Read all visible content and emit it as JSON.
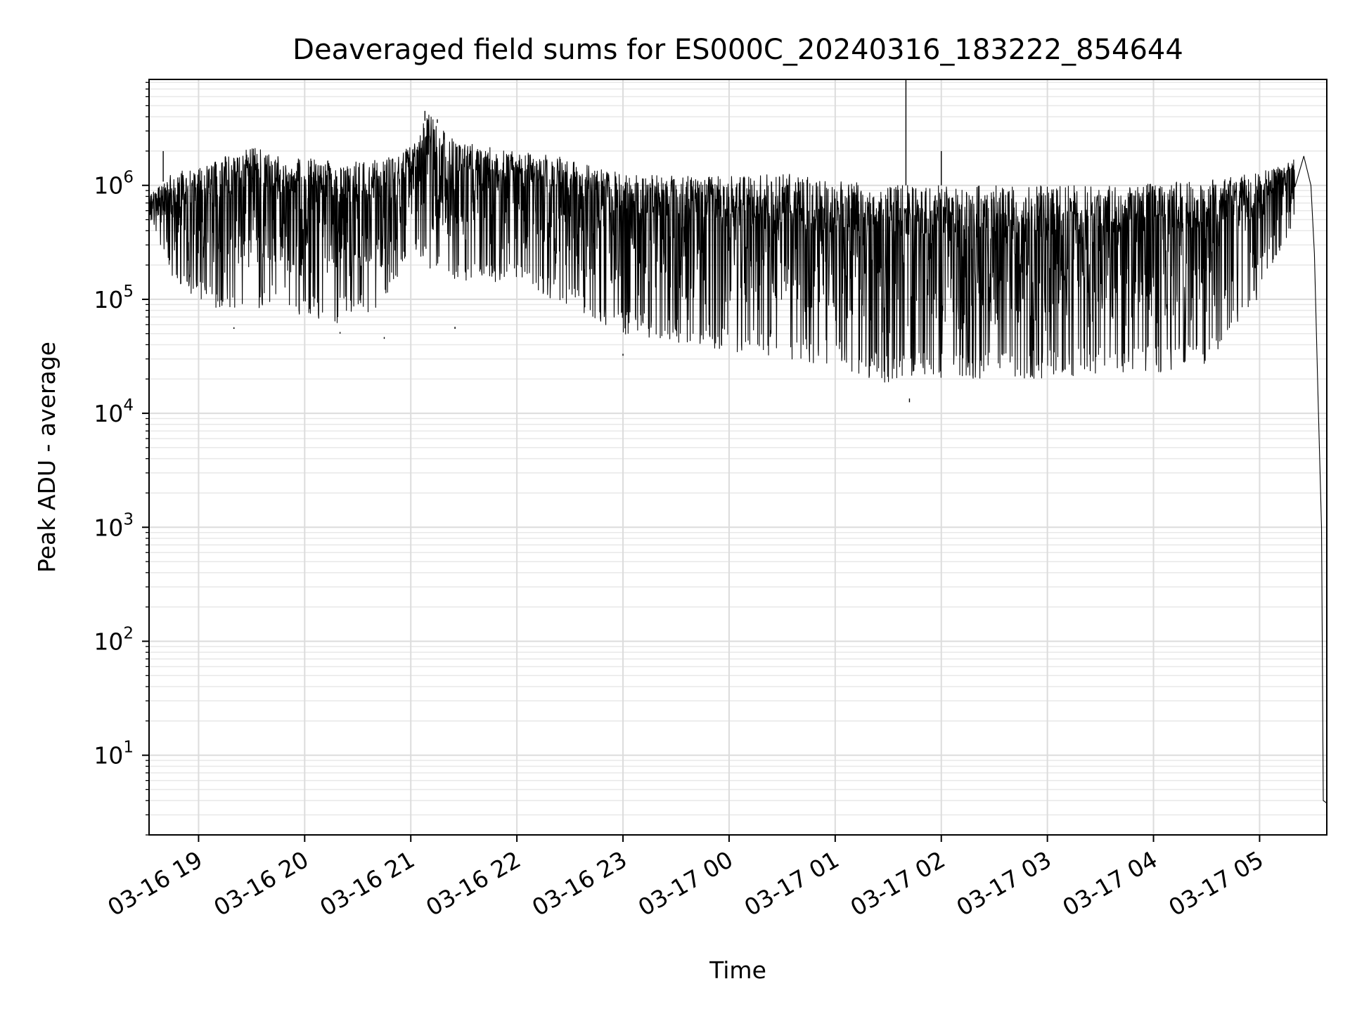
{
  "chart_data": {
    "type": "line",
    "title": "Deaveraged field sums for ES000C_20240316_183222_854644",
    "xlabel": "Time",
    "ylabel": "Peak ADU - average",
    "yscale": "log",
    "ylim": [
      2,
      8500000
    ],
    "xlim": [
      "2024-03-16 18:32",
      "2024-03-17 05:38"
    ],
    "grid": true,
    "x_ticks": [
      {
        "value": "2024-03-16 19:00",
        "label": "03-16 19"
      },
      {
        "value": "2024-03-16 20:00",
        "label": "03-16 20"
      },
      {
        "value": "2024-03-16 21:00",
        "label": "03-16 21"
      },
      {
        "value": "2024-03-16 22:00",
        "label": "03-16 22"
      },
      {
        "value": "2024-03-16 23:00",
        "label": "03-16 23"
      },
      {
        "value": "2024-03-17 00:00",
        "label": "03-17 00"
      },
      {
        "value": "2024-03-17 01:00",
        "label": "03-17 01"
      },
      {
        "value": "2024-03-17 02:00",
        "label": "03-17 02"
      },
      {
        "value": "2024-03-17 03:00",
        "label": "03-17 03"
      },
      {
        "value": "2024-03-17 04:00",
        "label": "03-17 04"
      },
      {
        "value": "2024-03-17 05:00",
        "label": "03-17 05"
      }
    ],
    "y_ticks": [
      {
        "value": 10,
        "base": "10",
        "exp": "1"
      },
      {
        "value": 100,
        "base": "10",
        "exp": "2"
      },
      {
        "value": 1000,
        "base": "10",
        "exp": "3"
      },
      {
        "value": 10000,
        "base": "10",
        "exp": "4"
      },
      {
        "value": 100000,
        "base": "10",
        "exp": "5"
      },
      {
        "value": 1000000,
        "base": "10",
        "exp": "6"
      }
    ],
    "series": [
      {
        "color": "#000000",
        "envelope": [
          {
            "x": "2024-03-16 18:32",
            "upper": 800000,
            "lower": 550000
          },
          {
            "x": "2024-03-16 18:45",
            "upper": 1300000,
            "lower": 150000
          },
          {
            "x": "2024-03-16 19:00",
            "upper": 1400000,
            "lower": 100000
          },
          {
            "x": "2024-03-16 19:15",
            "upper": 1800000,
            "lower": 70000
          },
          {
            "x": "2024-03-16 19:30",
            "upper": 2200000,
            "lower": 80000
          },
          {
            "x": "2024-03-16 19:45",
            "upper": 1800000,
            "lower": 90000
          },
          {
            "x": "2024-03-16 20:00",
            "upper": 1700000,
            "lower": 70000
          },
          {
            "x": "2024-03-16 20:15",
            "upper": 1800000,
            "lower": 60000
          },
          {
            "x": "2024-03-16 20:30",
            "upper": 1600000,
            "lower": 70000
          },
          {
            "x": "2024-03-16 20:45",
            "upper": 1700000,
            "lower": 80000
          },
          {
            "x": "2024-03-16 21:00",
            "upper": 2200000,
            "lower": 300000
          },
          {
            "x": "2024-03-16 21:10",
            "upper": 4200000,
            "lower": 180000
          },
          {
            "x": "2024-03-16 21:25",
            "upper": 2500000,
            "lower": 150000
          },
          {
            "x": "2024-03-16 21:45",
            "upper": 2200000,
            "lower": 130000
          },
          {
            "x": "2024-03-16 22:00",
            "upper": 2000000,
            "lower": 150000
          },
          {
            "x": "2024-03-16 22:20",
            "upper": 1900000,
            "lower": 100000
          },
          {
            "x": "2024-03-16 22:40",
            "upper": 1500000,
            "lower": 70000
          },
          {
            "x": "2024-03-16 23:00",
            "upper": 1300000,
            "lower": 50000
          },
          {
            "x": "2024-03-16 23:30",
            "upper": 1200000,
            "lower": 42000
          },
          {
            "x": "2024-03-17 00:00",
            "upper": 1200000,
            "lower": 35000
          },
          {
            "x": "2024-03-17 00:30",
            "upper": 1300000,
            "lower": 30000
          },
          {
            "x": "2024-03-17 01:00",
            "upper": 1100000,
            "lower": 25000
          },
          {
            "x": "2024-03-17 01:30",
            "upper": 1000000,
            "lower": 18000
          },
          {
            "x": "2024-03-17 02:00",
            "upper": 1000000,
            "lower": 20000
          },
          {
            "x": "2024-03-17 02:30",
            "upper": 1000000,
            "lower": 20000
          },
          {
            "x": "2024-03-17 03:00",
            "upper": 1000000,
            "lower": 20000
          },
          {
            "x": "2024-03-17 03:30",
            "upper": 1000000,
            "lower": 22000
          },
          {
            "x": "2024-03-17 04:00",
            "upper": 1050000,
            "lower": 22000
          },
          {
            "x": "2024-03-17 04:30",
            "upper": 1100000,
            "lower": 25000
          },
          {
            "x": "2024-03-17 05:00",
            "upper": 1300000,
            "lower": 100000
          },
          {
            "x": "2024-03-17 05:20",
            "upper": 1700000,
            "lower": 500000
          }
        ],
        "spikes": [
          {
            "x": "2024-03-16 18:40",
            "y": 2000000
          },
          {
            "x": "2024-03-16 19:20",
            "y": 55000
          },
          {
            "x": "2024-03-16 20:20",
            "y": 50000
          },
          {
            "x": "2024-03-16 20:45",
            "y": 45000
          },
          {
            "x": "2024-03-16 21:08",
            "y": 4500000
          },
          {
            "x": "2024-03-16 21:15",
            "y": 3800000
          },
          {
            "x": "2024-03-16 21:25",
            "y": 55000
          },
          {
            "x": "2024-03-16 23:00",
            "y": 32000
          },
          {
            "x": "2024-03-17 01:40",
            "y": 12500000
          },
          {
            "x": "2024-03-17 02:00",
            "y": 2000000
          },
          {
            "x": "2024-03-17 01:42",
            "y": 12500
          }
        ],
        "tail": [
          {
            "x": "2024-03-17 05:25",
            "y": 1800000
          },
          {
            "x": "2024-03-17 05:29",
            "y": 1000000
          },
          {
            "x": "2024-03-17 05:31",
            "y": 250000
          },
          {
            "x": "2024-03-17 05:33",
            "y": 15000
          },
          {
            "x": "2024-03-17 05:35",
            "y": 1000
          },
          {
            "x": "2024-03-17 05:36",
            "y": 4
          },
          {
            "x": "2024-03-17 05:38",
            "y": 3.8
          }
        ]
      }
    ]
  }
}
